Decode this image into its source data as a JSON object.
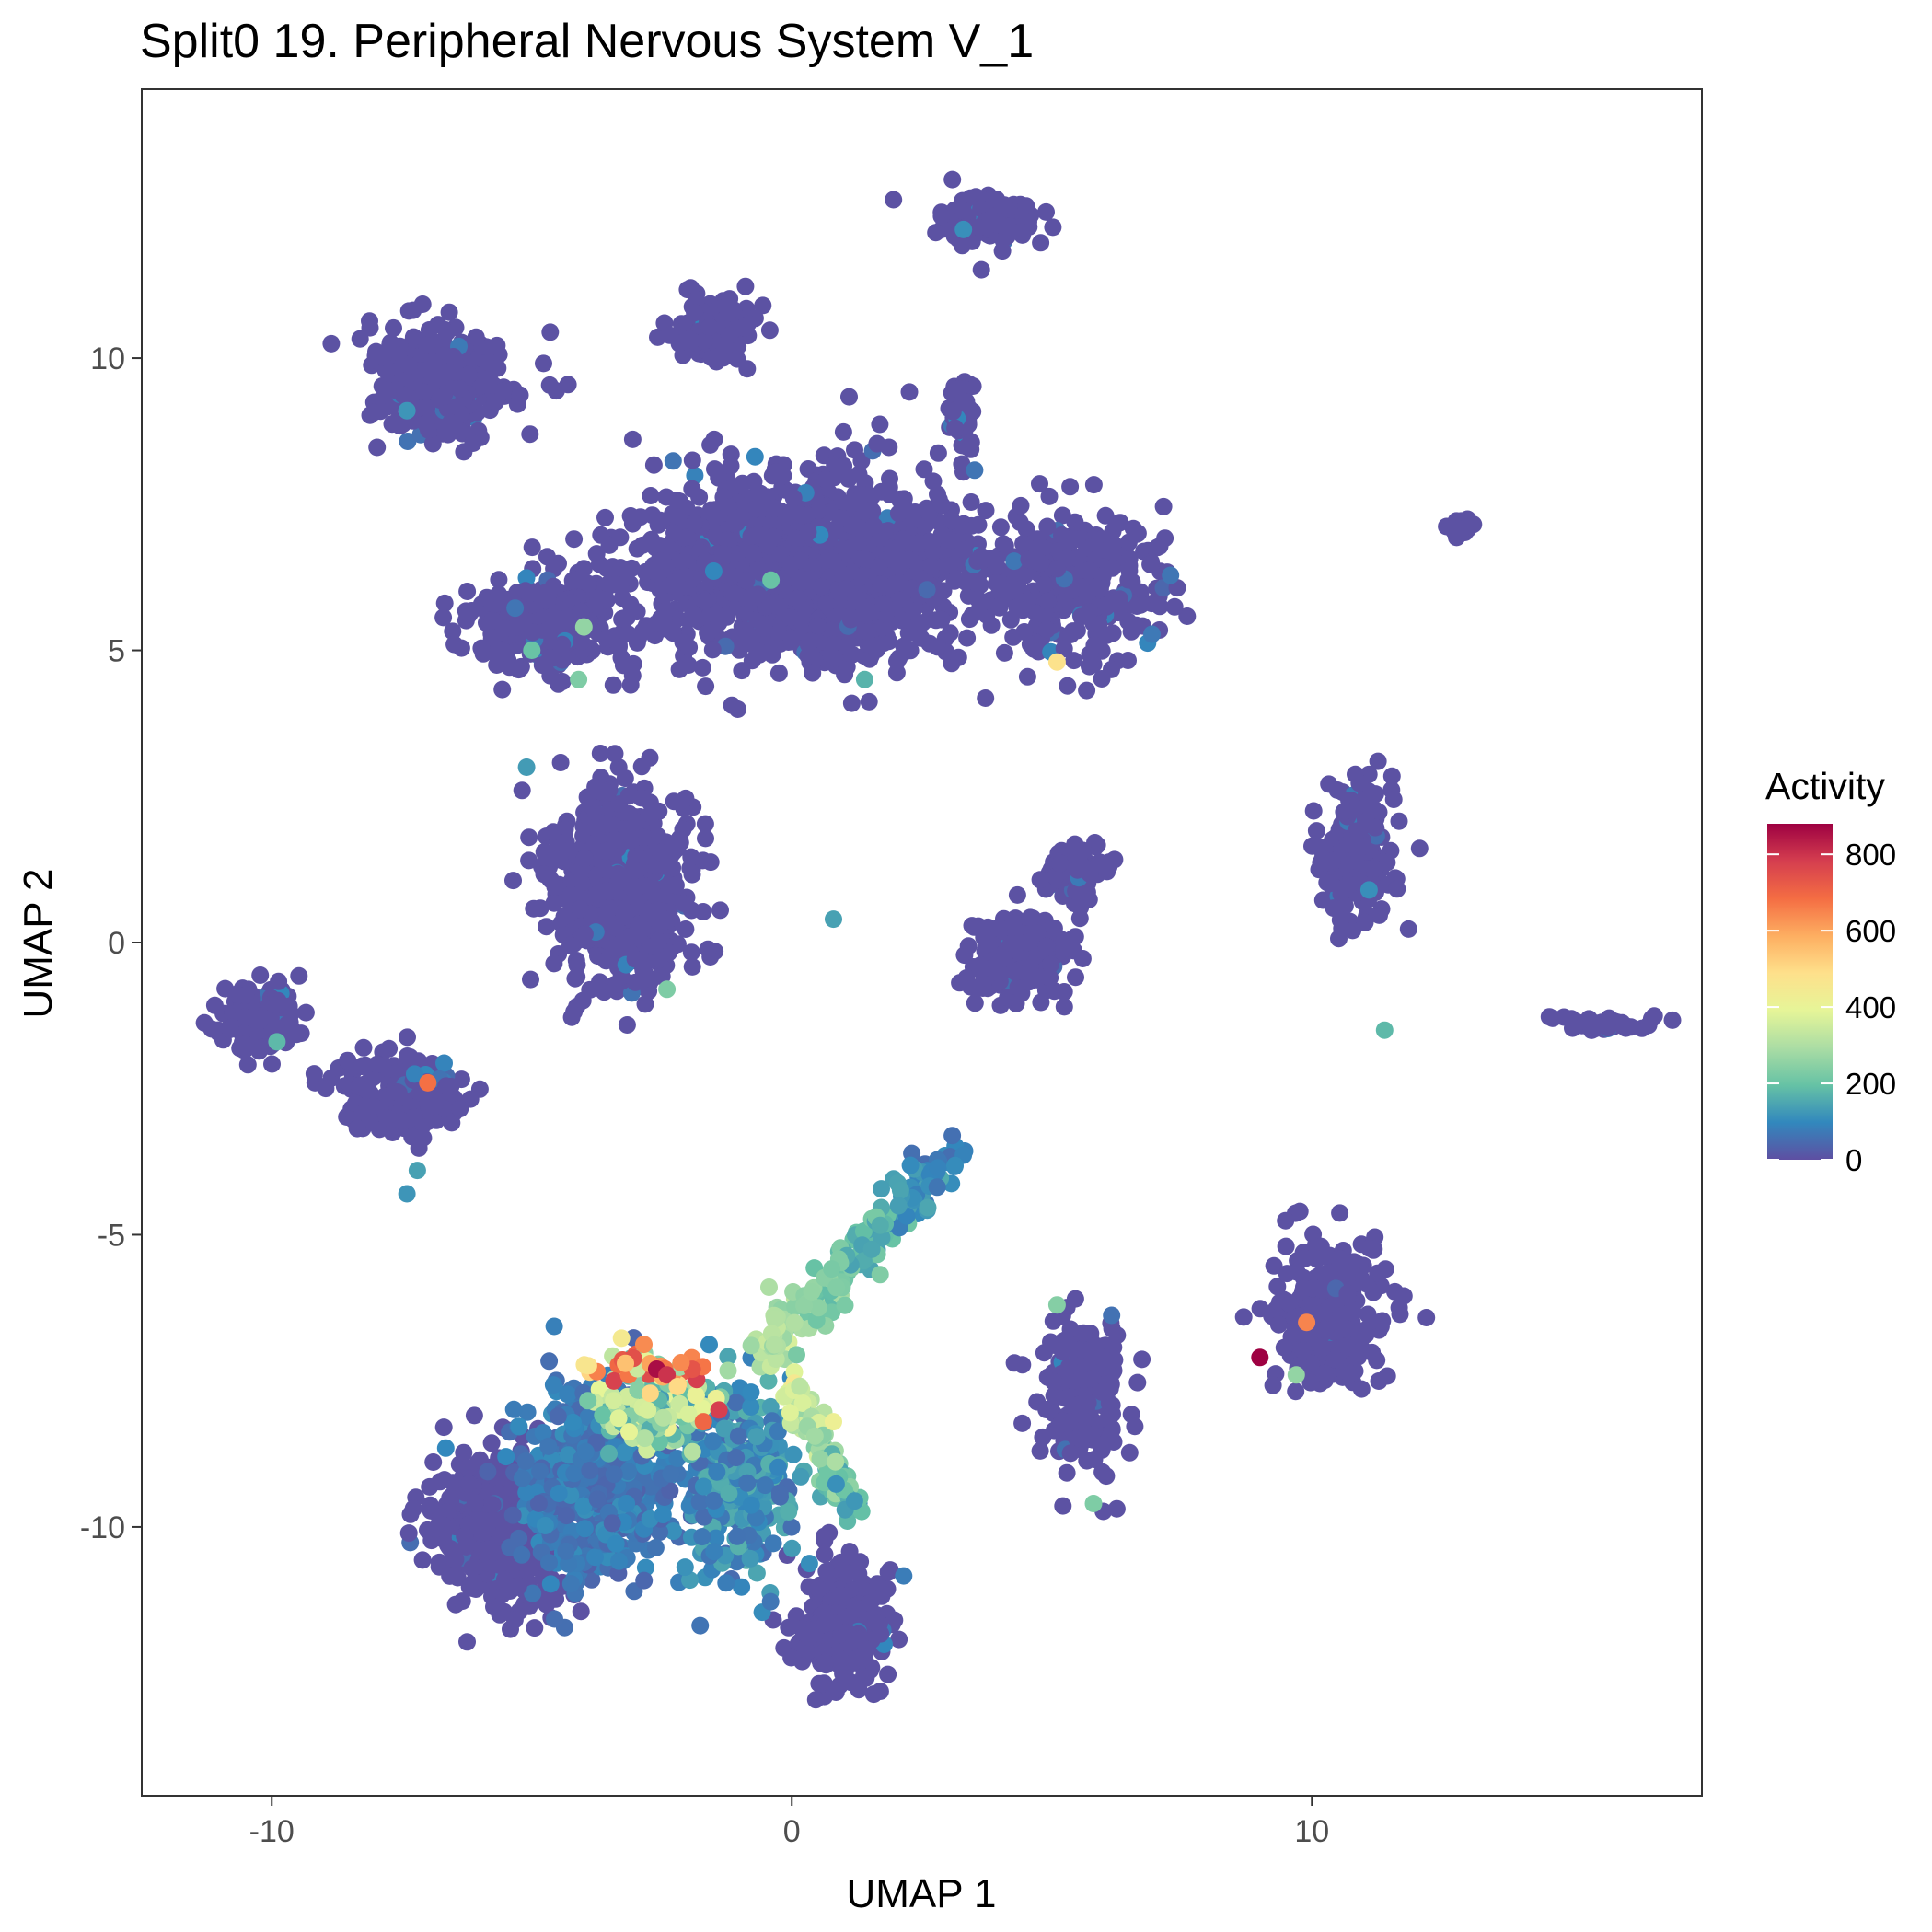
{
  "chart_data": {
    "type": "scatter",
    "title": "Split0 19. Peripheral Nervous System V_1",
    "xlabel": "UMAP 1",
    "ylabel": "UMAP 2",
    "xlim": [
      -12.5,
      17.5
    ],
    "ylim": [
      -14.6,
      14.6
    ],
    "x_ticks": [
      -10,
      0,
      10
    ],
    "x_tick_labels": [
      "-10",
      "0",
      "10"
    ],
    "y_ticks": [
      -10,
      -5,
      0,
      5,
      10
    ],
    "y_tick_labels": [
      "-10",
      "-5",
      "0",
      "5",
      "10"
    ],
    "grid": false,
    "color_scale": {
      "name": "Activity",
      "palette": "Spectral (reversed)",
      "min": 0,
      "max": 880,
      "ticks": [
        0,
        200,
        400,
        600,
        800
      ],
      "tick_labels": [
        "0",
        "200",
        "400",
        "600",
        "800"
      ],
      "colors": [
        "#5e4fa2",
        "#3288bd",
        "#66c2a5",
        "#abdda4",
        "#e6f598",
        "#fee08b",
        "#fdae61",
        "#f46d43",
        "#d53e4f",
        "#9e0142"
      ]
    },
    "legend_position": "right",
    "clusters": [
      {
        "center": [
          3.8,
          12.4
        ],
        "spread": [
          0.8,
          0.4
        ],
        "n": 150,
        "value": 5
      },
      {
        "center": [
          -1.5,
          10.5
        ],
        "spread": [
          0.7,
          0.5
        ],
        "n": 120,
        "value": 5
      },
      {
        "center": [
          -6.8,
          9.6
        ],
        "spread": [
          1.3,
          0.8
        ],
        "n": 320,
        "value": 5
      },
      {
        "center": [
          0.3,
          6.4
        ],
        "spread": [
          3.0,
          1.4
        ],
        "n": 1400,
        "value": 5
      },
      {
        "center": [
          -4.7,
          5.5
        ],
        "spread": [
          1.3,
          0.7
        ],
        "n": 320,
        "value": 5
      },
      {
        "center": [
          5.5,
          6.2
        ],
        "spread": [
          1.5,
          1.0
        ],
        "n": 350,
        "value": 5
      },
      {
        "center": [
          3.3,
          9.0
        ],
        "spread": [
          0.2,
          0.7
        ],
        "n": 60,
        "value": 5
      },
      {
        "center": [
          -3.3,
          1.0
        ],
        "spread": [
          1.2,
          1.5
        ],
        "n": 600,
        "value": 5
      },
      {
        "center": [
          4.4,
          -0.2
        ],
        "spread": [
          0.8,
          0.6
        ],
        "n": 220,
        "value": 5
      },
      {
        "center": [
          5.5,
          1.2
        ],
        "spread": [
          0.6,
          0.4
        ],
        "n": 90,
        "value": 5
      },
      {
        "center": [
          12.9,
          7.1
        ],
        "spread": [
          0.2,
          0.15
        ],
        "n": 25,
        "value": 5
      },
      {
        "center": [
          10.8,
          1.5
        ],
        "spread": [
          0.7,
          1.2
        ],
        "n": 190,
        "value": 5
      },
      {
        "center": [
          15.7,
          -1.4
        ],
        "spread": [
          0.8,
          0.12
        ],
        "n": 45,
        "value": 5
      },
      {
        "center": [
          -10.2,
          -1.3
        ],
        "spread": [
          0.7,
          0.6
        ],
        "n": 140,
        "value": 5
      },
      {
        "center": [
          -7.5,
          -2.6
        ],
        "spread": [
          1.0,
          0.6
        ],
        "n": 190,
        "value": 5
      },
      {
        "center": [
          5.6,
          -7.8
        ],
        "spread": [
          0.7,
          1.2
        ],
        "n": 220,
        "value": 5
      },
      {
        "center": [
          10.3,
          -6.3
        ],
        "spread": [
          1.0,
          1.1
        ],
        "n": 260,
        "value": 5
      },
      {
        "center": [
          -5.5,
          -10.0
        ],
        "spread": [
          1.3,
          1.2
        ],
        "n": 550,
        "value": 5
      },
      {
        "center": [
          1.0,
          -11.7
        ],
        "spread": [
          0.8,
          0.9
        ],
        "n": 250,
        "value": 5
      },
      {
        "center": [
          -3.7,
          -9.2
        ],
        "spread": [
          1.3,
          1.4
        ],
        "n": 550,
        "value": 80
      },
      {
        "center": [
          -1.0,
          -9.2
        ],
        "spread": [
          1.0,
          1.4
        ],
        "n": 300,
        "value": 120
      },
      {
        "center": [
          -2.6,
          -8.0
        ],
        "spread": [
          0.9,
          0.5
        ],
        "n": 160,
        "value": 300
      },
      {
        "center": [
          -2.7,
          -7.3
        ],
        "spread": [
          0.9,
          0.25
        ],
        "n": 50,
        "value": 560
      }
    ],
    "highlighted_points": [
      {
        "x": -2.6,
        "y": -7.3,
        "value": 860
      },
      {
        "x": -2.4,
        "y": -7.4,
        "value": 800
      },
      {
        "x": -1.4,
        "y": -8.0,
        "value": 780
      },
      {
        "x": -1.7,
        "y": -8.2,
        "value": 700
      },
      {
        "x": -7.0,
        "y": -2.4,
        "value": 680
      },
      {
        "x": 9.0,
        "y": -7.1,
        "value": 880
      },
      {
        "x": 9.9,
        "y": -6.5,
        "value": 650
      },
      {
        "x": 5.1,
        "y": 4.8,
        "value": 480
      },
      {
        "x": 0.8,
        "y": -8.2,
        "value": 420
      },
      {
        "x": -3.2,
        "y": -7.2,
        "value": 550
      },
      {
        "x": -2.2,
        "y": -7.6,
        "value": 500
      },
      {
        "x": -4.0,
        "y": 5.4,
        "value": 260
      },
      {
        "x": -4.1,
        "y": 4.5,
        "value": 230
      },
      {
        "x": -5.0,
        "y": 5.0,
        "value": 200
      },
      {
        "x": -0.4,
        "y": 6.2,
        "value": 200
      },
      {
        "x": 1.4,
        "y": 4.5,
        "value": 170
      },
      {
        "x": -2.4,
        "y": -0.8,
        "value": 230
      },
      {
        "x": 11.4,
        "y": -1.5,
        "value": 180
      },
      {
        "x": 9.7,
        "y": -7.4,
        "value": 260
      },
      {
        "x": 5.8,
        "y": -9.6,
        "value": 230
      },
      {
        "x": 5.1,
        "y": -6.2,
        "value": 240
      },
      {
        "x": -9.9,
        "y": -1.7,
        "value": 180
      },
      {
        "x": -7.2,
        "y": -3.9,
        "value": 140
      },
      {
        "x": -7.4,
        "y": -4.3,
        "value": 120
      },
      {
        "x": 3.3,
        "y": 12.2,
        "value": 110
      },
      {
        "x": -5.1,
        "y": 3.0,
        "value": 130
      },
      {
        "x": 0.8,
        "y": 0.4,
        "value": 140
      },
      {
        "x": -7.4,
        "y": 9.1,
        "value": 120
      },
      {
        "x": 11.1,
        "y": 0.9,
        "value": 110
      }
    ]
  }
}
